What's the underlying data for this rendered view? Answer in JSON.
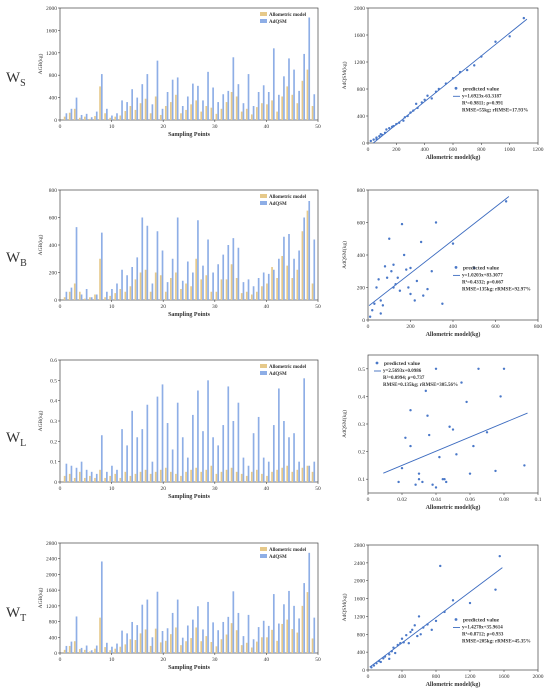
{
  "rows": [
    {
      "label": "W",
      "sub": "S"
    },
    {
      "label": "W",
      "sub": "B"
    },
    {
      "label": "W",
      "sub": "L"
    },
    {
      "label": "W",
      "sub": "T"
    }
  ],
  "colors": {
    "allometric": "#e6c98a",
    "adqsm": "#8eaee6",
    "pred_point": "#4a78c8",
    "fit_line": "#3d6cc0",
    "axis": "#444444",
    "grid": "#dddddd"
  },
  "chart_data": [
    {
      "type": "bar",
      "id": "bar-ws",
      "xlabel": "Sampling Points",
      "ylabel": "AGB(kg)",
      "ylim": [
        0,
        2000
      ],
      "yticks": [
        0,
        400,
        800,
        1200,
        1600,
        2000
      ],
      "xticks": [
        0,
        10,
        20,
        30,
        40,
        50
      ],
      "legend": [
        "Allometric model",
        "AdQSM"
      ],
      "legend_position": "top-right",
      "series": [
        {
          "name": "Allometric model",
          "values": [
            60,
            130,
            200,
            40,
            60,
            20,
            70,
            600,
            120,
            40,
            60,
            80,
            160,
            250,
            180,
            300,
            380,
            120,
            420,
            90,
            250,
            320,
            450,
            120,
            180,
            280,
            350,
            150,
            250,
            220,
            110,
            200,
            320,
            500,
            420,
            150,
            200,
            100,
            230,
            300,
            280,
            350,
            150,
            420,
            600,
            450,
            300,
            700,
            900,
            250
          ]
        },
        {
          "name": "AdQSM",
          "values": [
            120,
            200,
            400,
            90,
            110,
            50,
            150,
            820,
            200,
            80,
            120,
            350,
            320,
            550,
            400,
            640,
            820,
            280,
            1060,
            200,
            500,
            720,
            760,
            250,
            420,
            650,
            610,
            350,
            860,
            580,
            320,
            460,
            520,
            1120,
            640,
            300,
            820,
            250,
            500,
            620,
            500,
            1280,
            450,
            780,
            1100,
            900,
            520,
            1180,
            1830,
            460
          ]
        }
      ]
    },
    {
      "type": "scatter",
      "id": "sc-ws",
      "xlabel": "Allometric model(kg)",
      "ylabel": "AdQSM(kg)",
      "xlim": [
        0,
        1200
      ],
      "ylim": [
        0,
        2000
      ],
      "xticks": [
        0,
        200,
        400,
        600,
        800,
        1000,
        1200
      ],
      "yticks": [
        0,
        400,
        800,
        1200,
        1600,
        2000
      ],
      "legend_title": "predicted value",
      "legend_position": "bottom-right",
      "fit_text": [
        "y=1.6923x-63.3187",
        "R²=0.9811; ρ=0.991",
        "RMSE=55kg; rRMSE=17.93%"
      ],
      "fit": {
        "slope": 1.6923,
        "intercept": -63.3187
      },
      "points": [
        [
          20,
          30
        ],
        [
          40,
          50
        ],
        [
          60,
          80
        ],
        [
          80,
          100
        ],
        [
          100,
          120
        ],
        [
          120,
          150
        ],
        [
          130,
          200
        ],
        [
          150,
          220
        ],
        [
          170,
          240
        ],
        [
          200,
          280
        ],
        [
          220,
          300
        ],
        [
          250,
          330
        ],
        [
          280,
          400
        ],
        [
          300,
          450
        ],
        [
          320,
          480
        ],
        [
          350,
          520
        ],
        [
          380,
          600
        ],
        [
          400,
          640
        ],
        [
          420,
          700
        ],
        [
          450,
          660
        ],
        [
          480,
          760
        ],
        [
          500,
          800
        ],
        [
          550,
          880
        ],
        [
          600,
          960
        ],
        [
          650,
          1050
        ],
        [
          700,
          1080
        ],
        [
          750,
          1150
        ],
        [
          800,
          1280
        ],
        [
          900,
          1500
        ],
        [
          1000,
          1580
        ],
        [
          1100,
          1850
        ],
        [
          180,
          250
        ],
        [
          60,
          60
        ],
        [
          90,
          130
        ],
        [
          260,
          380
        ],
        [
          340,
          580
        ]
      ]
    },
    {
      "type": "bar",
      "id": "bar-wb",
      "xlabel": "Sampling Points",
      "ylabel": "AGB(kg)",
      "ylim": [
        0,
        800
      ],
      "yticks": [
        0,
        200,
        400,
        600,
        800
      ],
      "xticks": [
        0,
        10,
        20,
        30,
        40,
        50
      ],
      "legend": [
        "Allometric model",
        "AdQSM"
      ],
      "legend_position": "top-right",
      "series": [
        {
          "name": "Allometric model",
          "values": [
            20,
            60,
            120,
            60,
            10,
            20,
            40,
            300,
            20,
            30,
            50,
            80,
            60,
            100,
            150,
            200,
            220,
            60,
            200,
            180,
            60,
            160,
            200,
            80,
            120,
            100,
            300,
            150,
            180,
            60,
            60,
            150,
            150,
            260,
            160,
            50,
            60,
            40,
            60,
            100,
            120,
            240,
            160,
            320,
            250,
            160,
            220,
            500,
            650,
            120
          ]
        },
        {
          "name": "AdQSM",
          "values": [
            60,
            90,
            530,
            40,
            80,
            20,
            40,
            490,
            60,
            80,
            120,
            220,
            180,
            240,
            310,
            600,
            540,
            120,
            500,
            360,
            130,
            300,
            600,
            140,
            280,
            200,
            580,
            250,
            440,
            200,
            260,
            330,
            400,
            450,
            380,
            130,
            150,
            100,
            160,
            200,
            190,
            220,
            300,
            460,
            480,
            300,
            360,
            600,
            720,
            440
          ]
        }
      ]
    },
    {
      "type": "scatter",
      "id": "sc-wb",
      "xlabel": "Allometric model(kg)",
      "ylabel": "AdQSM(kg)",
      "xlim": [
        0,
        800
      ],
      "ylim": [
        0,
        800
      ],
      "xticks": [
        0,
        200,
        400,
        600,
        800
      ],
      "yticks": [
        0,
        200,
        400,
        600,
        800
      ],
      "legend_title": "predicted value",
      "legend_position": "bottom-right",
      "fit_text": [
        "y=1.0203x+83.3077",
        "R²=0.4332; ρ=0.667",
        "RMSE=135kg; rRMSE=92.97%"
      ],
      "fit": {
        "slope": 1.0203,
        "intercept": 83.3077
      },
      "points": [
        [
          10,
          20
        ],
        [
          20,
          60
        ],
        [
          30,
          100
        ],
        [
          40,
          200
        ],
        [
          50,
          250
        ],
        [
          60,
          120
        ],
        [
          80,
          330
        ],
        [
          100,
          500
        ],
        [
          110,
          300
        ],
        [
          120,
          200
        ],
        [
          130,
          220
        ],
        [
          140,
          260
        ],
        [
          150,
          180
        ],
        [
          160,
          590
        ],
        [
          170,
          400
        ],
        [
          180,
          310
        ],
        [
          190,
          200
        ],
        [
          200,
          160
        ],
        [
          220,
          120
        ],
        [
          250,
          480
        ],
        [
          300,
          300
        ],
        [
          320,
          600
        ],
        [
          350,
          100
        ],
        [
          400,
          470
        ],
        [
          500,
          320
        ],
        [
          650,
          730
        ],
        [
          60,
          40
        ],
        [
          70,
          90
        ],
        [
          90,
          260
        ],
        [
          120,
          340
        ],
        [
          200,
          320
        ],
        [
          230,
          240
        ],
        [
          260,
          150
        ],
        [
          280,
          190
        ]
      ]
    },
    {
      "type": "bar",
      "id": "bar-wl",
      "xlabel": "Sampling Points",
      "ylabel": "AGB(kg)",
      "ylim": [
        0,
        0.6
      ],
      "yticks": [
        0,
        0.1,
        0.2,
        0.3,
        0.4,
        0.5,
        0.6
      ],
      "xticks": [
        0,
        10,
        20,
        30,
        40,
        50
      ],
      "legend": [
        "Allometric model",
        "AdQSM"
      ],
      "legend_position": "top-right",
      "series": [
        {
          "name": "Allometric model",
          "values": [
            0.03,
            0.04,
            0.02,
            0.05,
            0.02,
            0.03,
            0.02,
            0.06,
            0.02,
            0.03,
            0.04,
            0.02,
            0.05,
            0.03,
            0.04,
            0.05,
            0.06,
            0.04,
            0.05,
            0.06,
            0.07,
            0.05,
            0.04,
            0.03,
            0.05,
            0.06,
            0.07,
            0.05,
            0.06,
            0.08,
            0.04,
            0.05,
            0.06,
            0.07,
            0.05,
            0.04,
            0.03,
            0.05,
            0.06,
            0.04,
            0.03,
            0.05,
            0.06,
            0.07,
            0.08,
            0.05,
            0.06,
            0.07,
            0.08,
            0.05
          ]
        },
        {
          "name": "AdQSM",
          "values": [
            0.09,
            0.08,
            0.07,
            0.1,
            0.06,
            0.05,
            0.04,
            0.23,
            0.05,
            0.08,
            0.06,
            0.26,
            0.18,
            0.35,
            0.22,
            0.26,
            0.38,
            0.1,
            0.42,
            0.48,
            0.29,
            0.16,
            0.39,
            0.22,
            0.12,
            0.33,
            0.45,
            0.25,
            0.5,
            0.22,
            0.18,
            0.28,
            0.47,
            0.3,
            0.39,
            0.12,
            0.08,
            0.24,
            0.32,
            0.12,
            0.1,
            0.28,
            0.46,
            0.3,
            0.22,
            0.24,
            0.1,
            0.51,
            0.08,
            0.1
          ]
        }
      ]
    },
    {
      "type": "scatter",
      "id": "sc-wl",
      "xlabel": "Allometric model(kg)",
      "ylabel": "AdQSM(kg)",
      "xlim": [
        0,
        0.1
      ],
      "ylim": [
        0.05,
        0.55
      ],
      "xticks": [
        0,
        0.02,
        0.04,
        0.06,
        0.08,
        0.1
      ],
      "yticks": [
        0.1,
        0.2,
        0.3,
        0.4,
        0.5
      ],
      "legend_title": "predicted value",
      "legend_position": "top-left",
      "fit_text": [
        "y=2.5693x+0.0986",
        "R²=0.0994; ρ=0.737",
        "RMSE=0.135kg; rRMSE=305.56%"
      ],
      "fit": {
        "slope": 2.5693,
        "intercept": 0.0986
      },
      "points": [
        [
          0.018,
          0.09
        ],
        [
          0.02,
          0.14
        ],
        [
          0.022,
          0.25
        ],
        [
          0.025,
          0.22
        ],
        [
          0.025,
          0.35
        ],
        [
          0.028,
          0.08
        ],
        [
          0.03,
          0.12
        ],
        [
          0.032,
          0.09
        ],
        [
          0.034,
          0.42
        ],
        [
          0.036,
          0.26
        ],
        [
          0.038,
          0.08
        ],
        [
          0.04,
          0.5
        ],
        [
          0.042,
          0.18
        ],
        [
          0.044,
          0.1
        ],
        [
          0.046,
          0.09
        ],
        [
          0.048,
          0.29
        ],
        [
          0.05,
          0.28
        ],
        [
          0.052,
          0.19
        ],
        [
          0.055,
          0.45
        ],
        [
          0.058,
          0.38
        ],
        [
          0.06,
          0.12
        ],
        [
          0.062,
          0.22
        ],
        [
          0.065,
          0.5
        ],
        [
          0.07,
          0.27
        ],
        [
          0.075,
          0.13
        ],
        [
          0.078,
          0.4
        ],
        [
          0.08,
          0.5
        ],
        [
          0.092,
          0.15
        ],
        [
          0.035,
          0.33
        ],
        [
          0.045,
          0.1
        ],
        [
          0.03,
          0.1
        ],
        [
          0.04,
          0.07
        ]
      ]
    },
    {
      "type": "bar",
      "id": "bar-wt",
      "xlabel": "Sampling Points",
      "ylabel": "AGB(kg)",
      "ylim": [
        0,
        2800
      ],
      "yticks": [
        0,
        400,
        800,
        1200,
        1600,
        2000,
        2400,
        2800
      ],
      "xticks": [
        0,
        10,
        20,
        30,
        40,
        50
      ],
      "legend": [
        "Allometric model",
        "AdQSM"
      ],
      "legend_position": "top-right",
      "series": [
        {
          "name": "Allometric model",
          "values": [
            80,
            180,
            300,
            100,
            80,
            40,
            110,
            900,
            150,
            70,
            110,
            160,
            220,
            350,
            330,
            500,
            600,
            180,
            620,
            270,
            310,
            480,
            650,
            200,
            300,
            380,
            650,
            300,
            430,
            280,
            170,
            350,
            470,
            760,
            580,
            200,
            260,
            140,
            290,
            400,
            400,
            590,
            310,
            740,
            850,
            610,
            520,
            1200,
            1550,
            370
          ]
        },
        {
          "name": "AdQSM",
          "values": [
            180,
            290,
            930,
            130,
            190,
            70,
            190,
            2330,
            260,
            160,
            240,
            570,
            500,
            790,
            710,
            1230,
            1360,
            400,
            1560,
            560,
            630,
            1020,
            1360,
            390,
            700,
            850,
            1190,
            600,
            1300,
            780,
            580,
            790,
            920,
            1570,
            1020,
            430,
            970,
            350,
            660,
            820,
            690,
            1500,
            750,
            1240,
            1580,
            1200,
            880,
            1780,
            2550,
            900
          ]
        }
      ]
    },
    {
      "type": "scatter",
      "id": "sc-wt",
      "xlabel": "Allometric model(kg)",
      "ylabel": "AdQSM(kg)",
      "xlim": [
        0,
        2000
      ],
      "ylim": [
        0,
        2800
      ],
      "xticks": [
        0,
        400,
        800,
        1200,
        1600,
        2000
      ],
      "yticks": [
        0,
        400,
        800,
        1200,
        1600,
        2000,
        2400,
        2800
      ],
      "legend_title": "predicted value",
      "legend_position": "bottom-right",
      "fit_text": [
        "y=1.4278x+35.9614",
        "R²=0.8712; ρ=0.933",
        "RMSE=205kg; rRMSE=45.35%"
      ],
      "fit": {
        "slope": 1.4278,
        "intercept": 35.9614
      },
      "points": [
        [
          40,
          60
        ],
        [
          70,
          100
        ],
        [
          100,
          150
        ],
        [
          130,
          200
        ],
        [
          150,
          180
        ],
        [
          180,
          260
        ],
        [
          200,
          300
        ],
        [
          250,
          350
        ],
        [
          280,
          420
        ],
        [
          300,
          500
        ],
        [
          350,
          560
        ],
        [
          380,
          600
        ],
        [
          400,
          700
        ],
        [
          450,
          780
        ],
        [
          500,
          850
        ],
        [
          520,
          900
        ],
        [
          550,
          1000
        ],
        [
          600,
          1200
        ],
        [
          620,
          800
        ],
        [
          650,
          950
        ],
        [
          700,
          1020
        ],
        [
          750,
          900
        ],
        [
          800,
          1100
        ],
        [
          850,
          2330
        ],
        [
          900,
          1300
        ],
        [
          1000,
          1560
        ],
        [
          1200,
          1500
        ],
        [
          1500,
          1800
        ],
        [
          1550,
          2550
        ],
        [
          250,
          250
        ],
        [
          320,
          380
        ],
        [
          420,
          620
        ],
        [
          480,
          600
        ],
        [
          580,
          760
        ]
      ]
    }
  ]
}
